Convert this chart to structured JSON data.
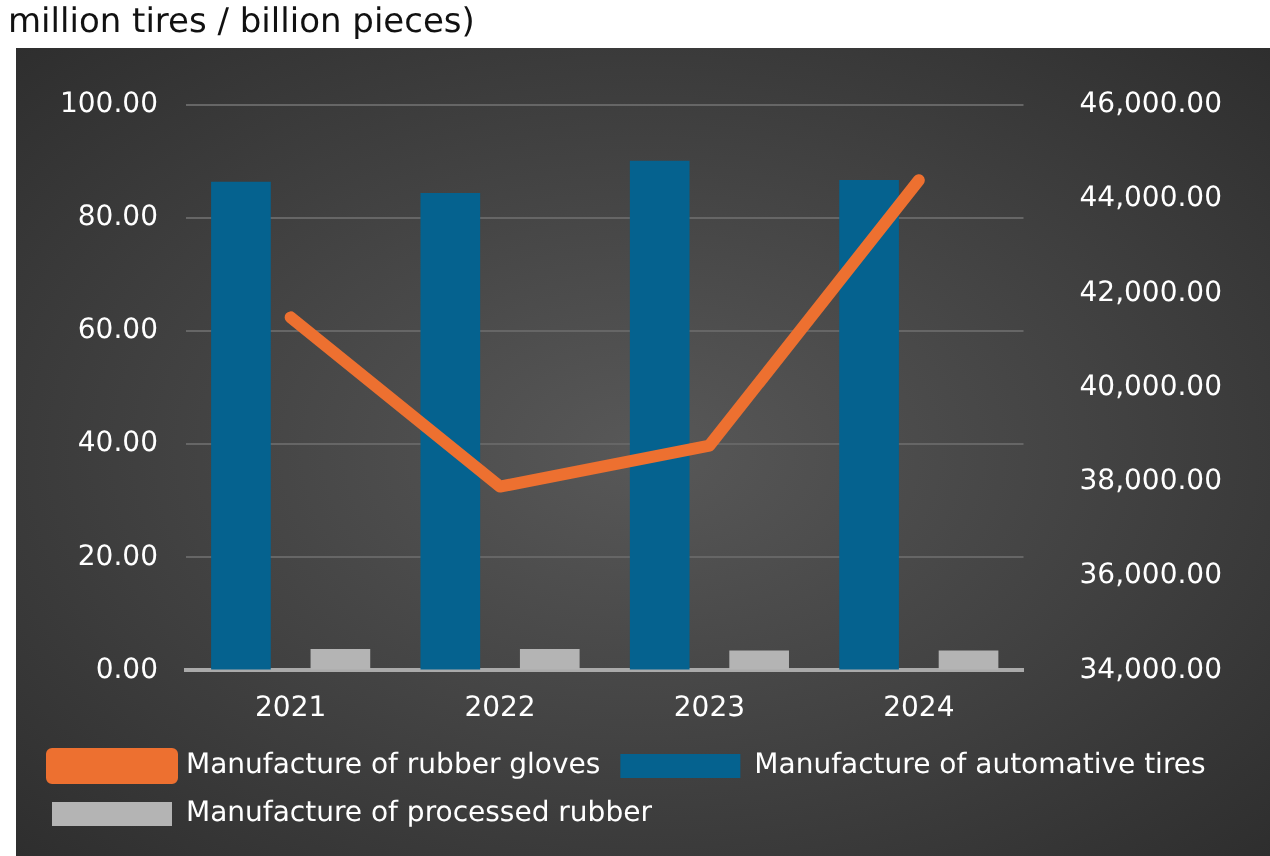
{
  "chart_data": {
    "type": "bar",
    "title": "million tires / billion pieces)",
    "categories": [
      "2021",
      "2022",
      "2023",
      "2024"
    ],
    "series": [
      {
        "name": "Manufacture of automative tires",
        "color": "#05628f",
        "values": [
          86.4,
          84.4,
          90.1,
          86.7
        ]
      },
      {
        "name": "Manufacture of processed rubber",
        "color": "#b4b4b4",
        "values": [
          3.8,
          3.8,
          3.5,
          3.5
        ]
      },
      {
        "name": "Manufacture of rubber gloves",
        "type": "line",
        "axis": "y2",
        "color": "#ed7030",
        "values": [
          41490,
          37900,
          38770,
          44400
        ]
      }
    ],
    "ylim": [
      0,
      100
    ],
    "yticks": [
      {
        "value": 0,
        "label": "0.00"
      },
      {
        "value": 20,
        "label": "20.00"
      },
      {
        "value": 40,
        "label": "40.00"
      },
      {
        "value": 60,
        "label": "60.00"
      },
      {
        "value": 80,
        "label": "80.00"
      },
      {
        "value": 100,
        "label": "100.00"
      }
    ],
    "y2lim": [
      34000,
      46000
    ],
    "y2ticks": [
      {
        "value": 34000,
        "label": "34,000.00"
      },
      {
        "value": 36000,
        "label": "36,000.00"
      },
      {
        "value": 38000,
        "label": "38,000.00"
      },
      {
        "value": 40000,
        "label": "40,000.00"
      },
      {
        "value": 42000,
        "label": "42,000.00"
      },
      {
        "value": 44000,
        "label": "44,000.00"
      },
      {
        "value": 46000,
        "label": "46,000.00"
      }
    ],
    "grid": "y",
    "legend": "bottom",
    "marker": "none",
    "line_style": "solid"
  }
}
